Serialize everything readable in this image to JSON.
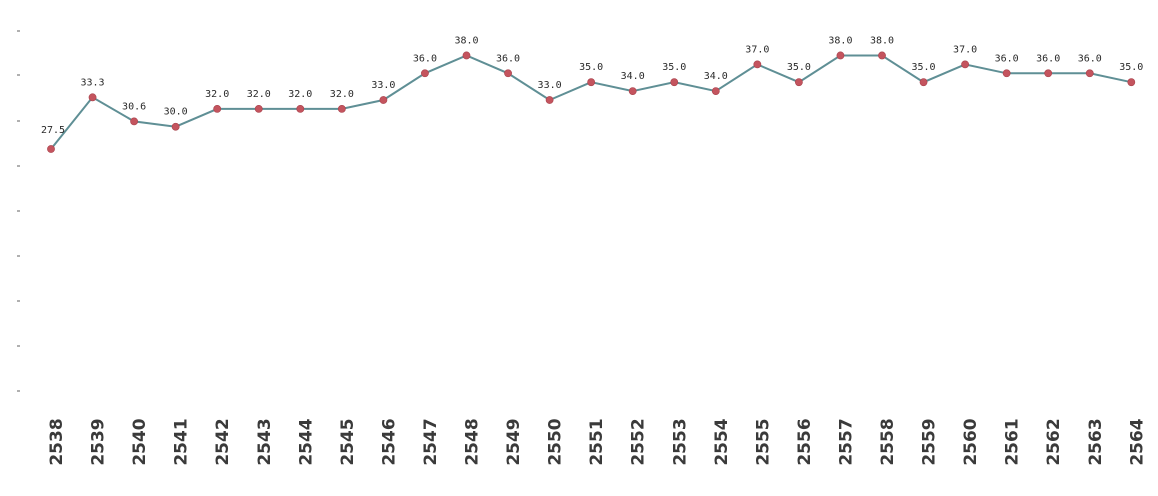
{
  "chart_data": {
    "type": "line",
    "title": "",
    "xlabel": "",
    "ylabel": "",
    "categories": [
      "2538",
      "2539",
      "2540",
      "2541",
      "2542",
      "2543",
      "2544",
      "2545",
      "2546",
      "2547",
      "2548",
      "2549",
      "2550",
      "2551",
      "2552",
      "2553",
      "2554",
      "2555",
      "2556",
      "2557",
      "2558",
      "2559",
      "2560",
      "2561",
      "2562",
      "2563",
      "2564"
    ],
    "series": [
      {
        "values": [
          27.5,
          33.3,
          30.6,
          30.0,
          32.0,
          32.0,
          32.0,
          32.0,
          33.0,
          36.0,
          38.0,
          36.0,
          33.0,
          35.0,
          34.0,
          35.0,
          34.0,
          37.0,
          35.0,
          38.0,
          38.0,
          35.0,
          37.0,
          36.0,
          36.0,
          36.0,
          35.0
        ],
        "labels": [
          "27.5",
          "33.3",
          "30.6",
          "30.0",
          "32.0",
          "32.0",
          "32.0",
          "32.0",
          "33.0",
          "36.0",
          "38.0",
          "36.0",
          "33.0",
          "35.0",
          "34.0",
          "35.0",
          "34.0",
          "37.0",
          "35.0",
          "38.0",
          "38.0",
          "35.0",
          "37.0",
          "36.0",
          "36.0",
          "36.0",
          "35.0"
        ]
      }
    ],
    "ylim": [
      0,
      44
    ],
    "grid": false,
    "legend": "none",
    "colors": {
      "line": "#5f8f95",
      "marker": "#c4545e"
    }
  }
}
